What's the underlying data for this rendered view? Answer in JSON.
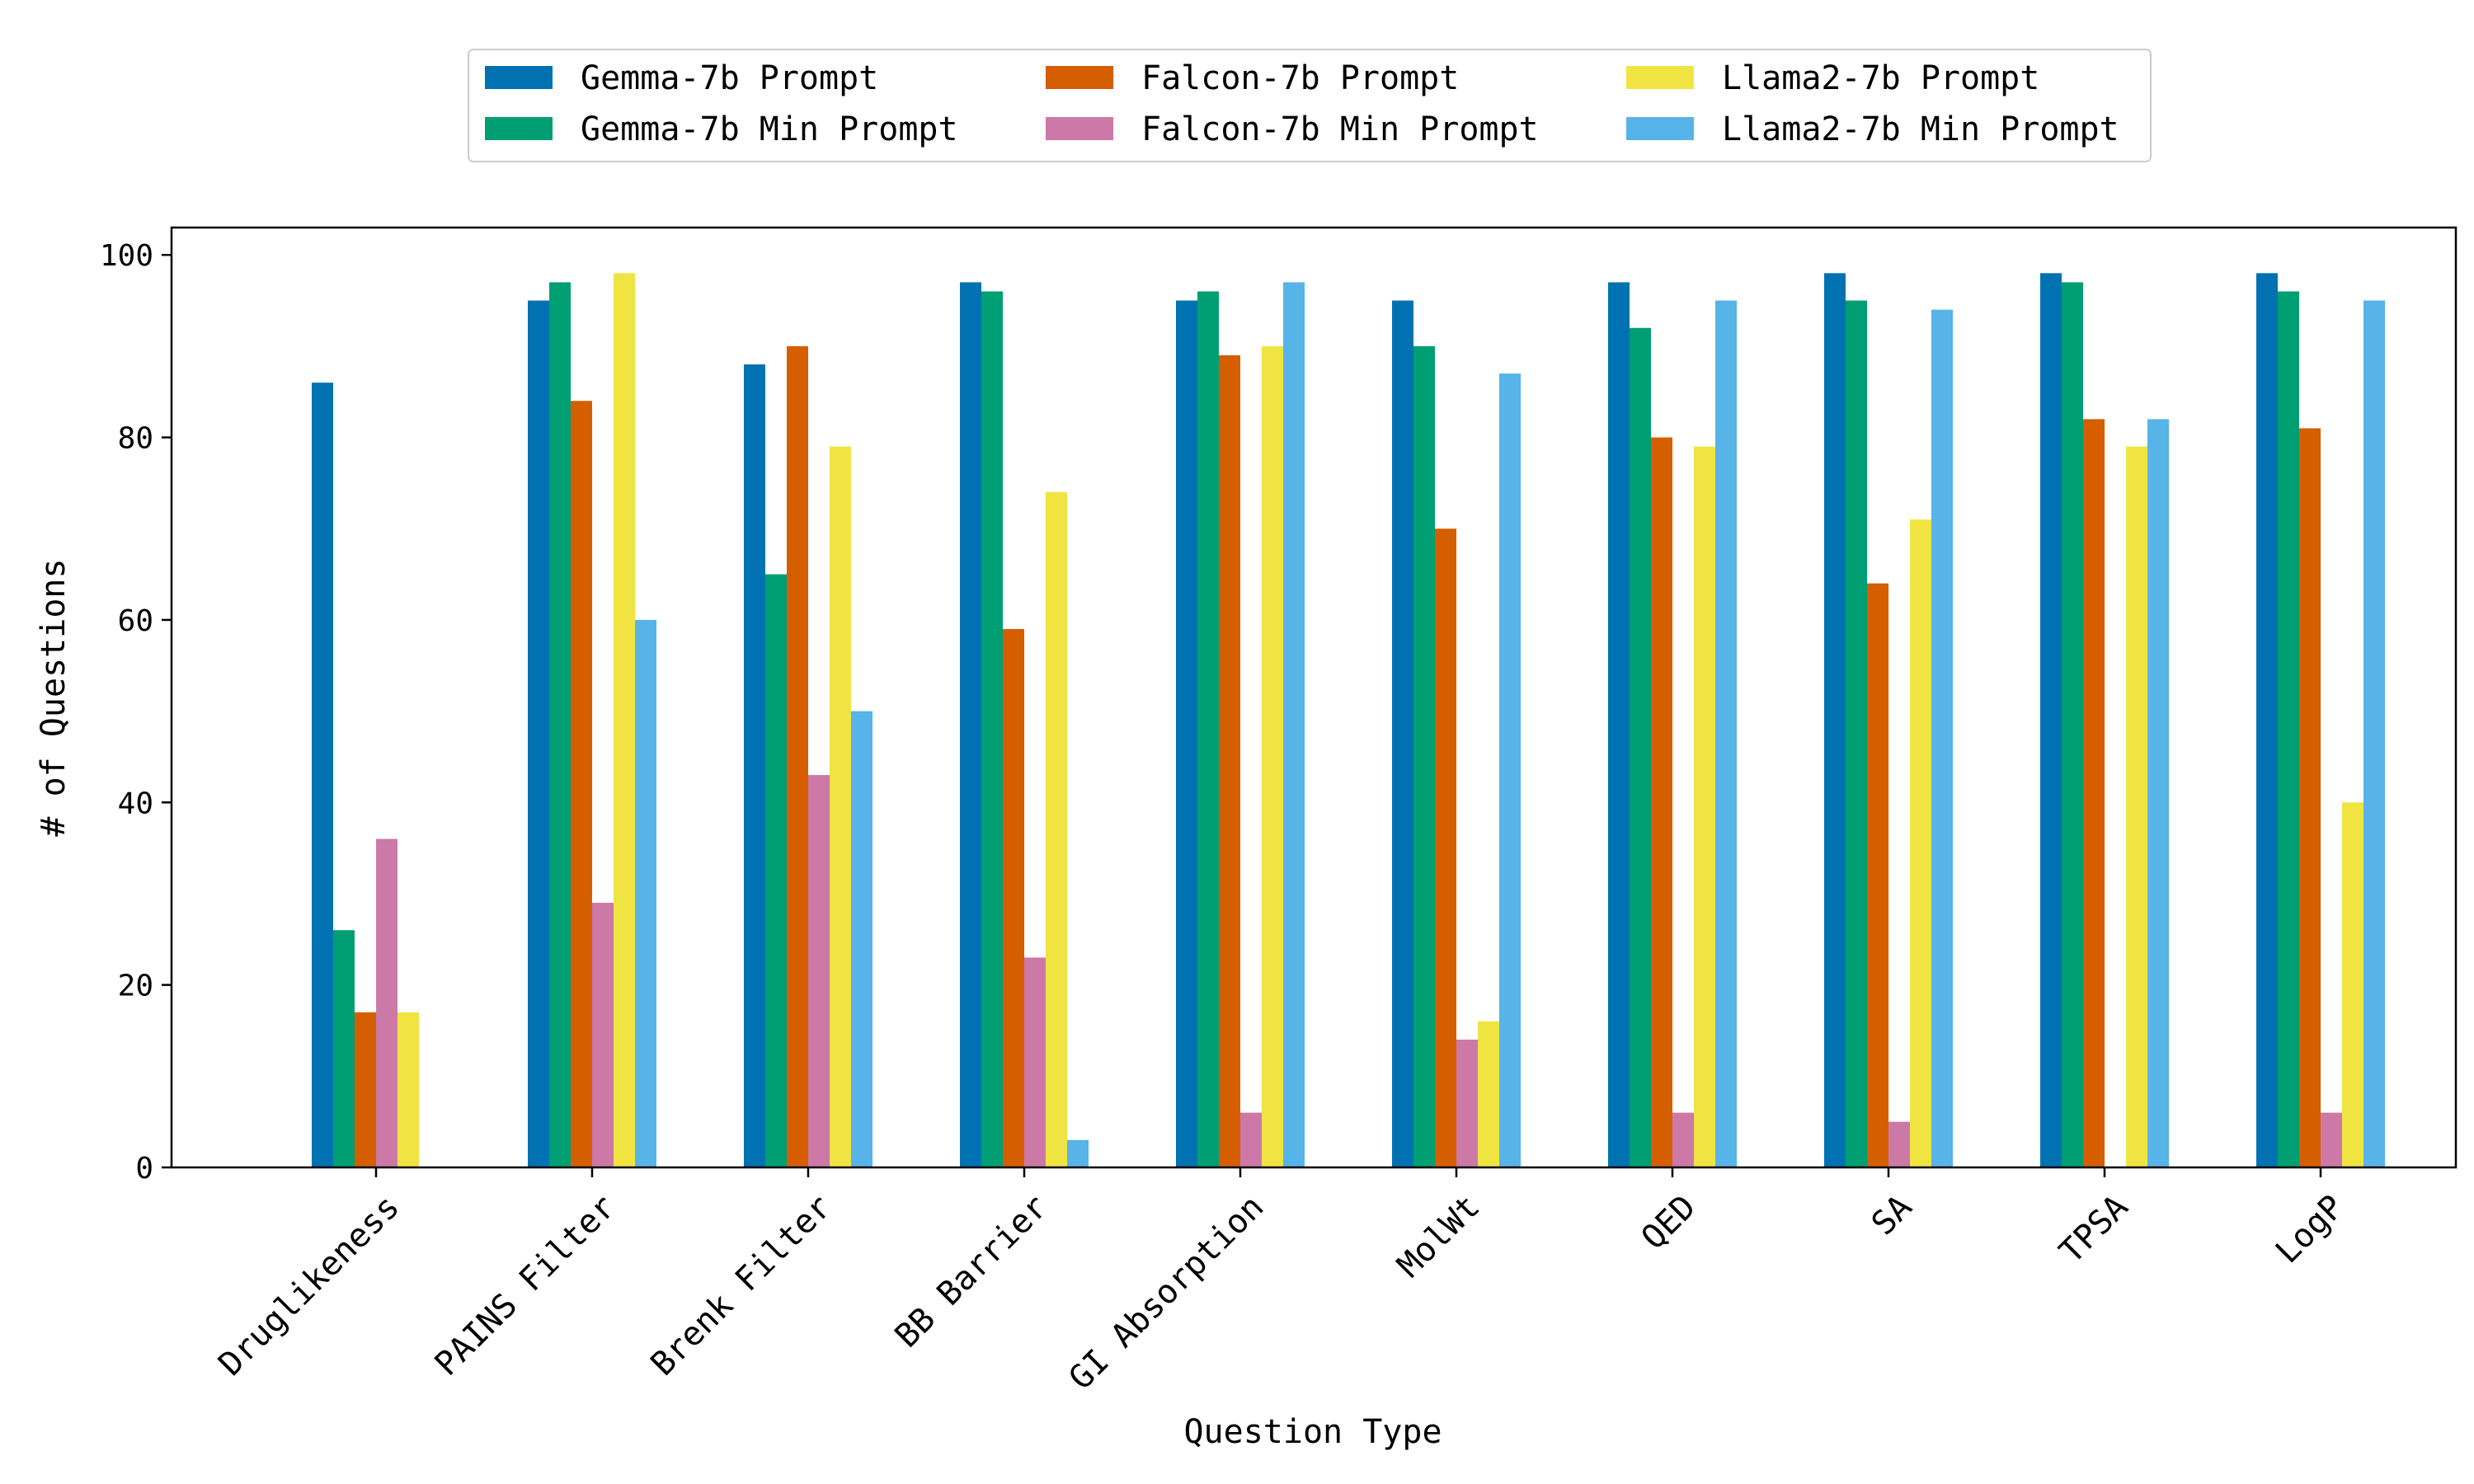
{
  "chart_data": {
    "type": "bar",
    "title": "",
    "xlabel": "Question Type",
    "ylabel": "# of Questions",
    "ylim": [
      0,
      103
    ],
    "yticks": [
      0,
      20,
      40,
      60,
      80,
      100
    ],
    "grid": false,
    "legend_position": "top-center",
    "categories": [
      "Druglikeness",
      "PAINS Filter",
      "Brenk Filter",
      "BB Barrier",
      "GI Absorption",
      "MolWt",
      "QED",
      "SA",
      "TPSA",
      "LogP"
    ],
    "series": [
      {
        "name": "Gemma-7b Prompt",
        "color": "#0072b2",
        "values": [
          86,
          95,
          88,
          97,
          95,
          95,
          97,
          98,
          98,
          98
        ]
      },
      {
        "name": "Gemma-7b Min Prompt",
        "color": "#009e73",
        "values": [
          26,
          97,
          65,
          96,
          96,
          90,
          92,
          95,
          97,
          96
        ]
      },
      {
        "name": "Falcon-7b Prompt",
        "color": "#d55e00",
        "values": [
          17,
          84,
          90,
          59,
          89,
          70,
          80,
          64,
          82,
          81
        ]
      },
      {
        "name": "Falcon-7b Min Prompt",
        "color": "#cc79a7",
        "values": [
          36,
          29,
          43,
          23,
          6,
          14,
          6,
          5,
          0,
          6
        ]
      },
      {
        "name": "Llama2-7b Prompt",
        "color": "#f0e442",
        "values": [
          17,
          98,
          79,
          74,
          90,
          16,
          79,
          71,
          79,
          40
        ]
      },
      {
        "name": "Llama2-7b Min Prompt",
        "color": "#56b4e9",
        "values": [
          0,
          60,
          50,
          3,
          97,
          87,
          95,
          94,
          82,
          95
        ]
      }
    ]
  }
}
